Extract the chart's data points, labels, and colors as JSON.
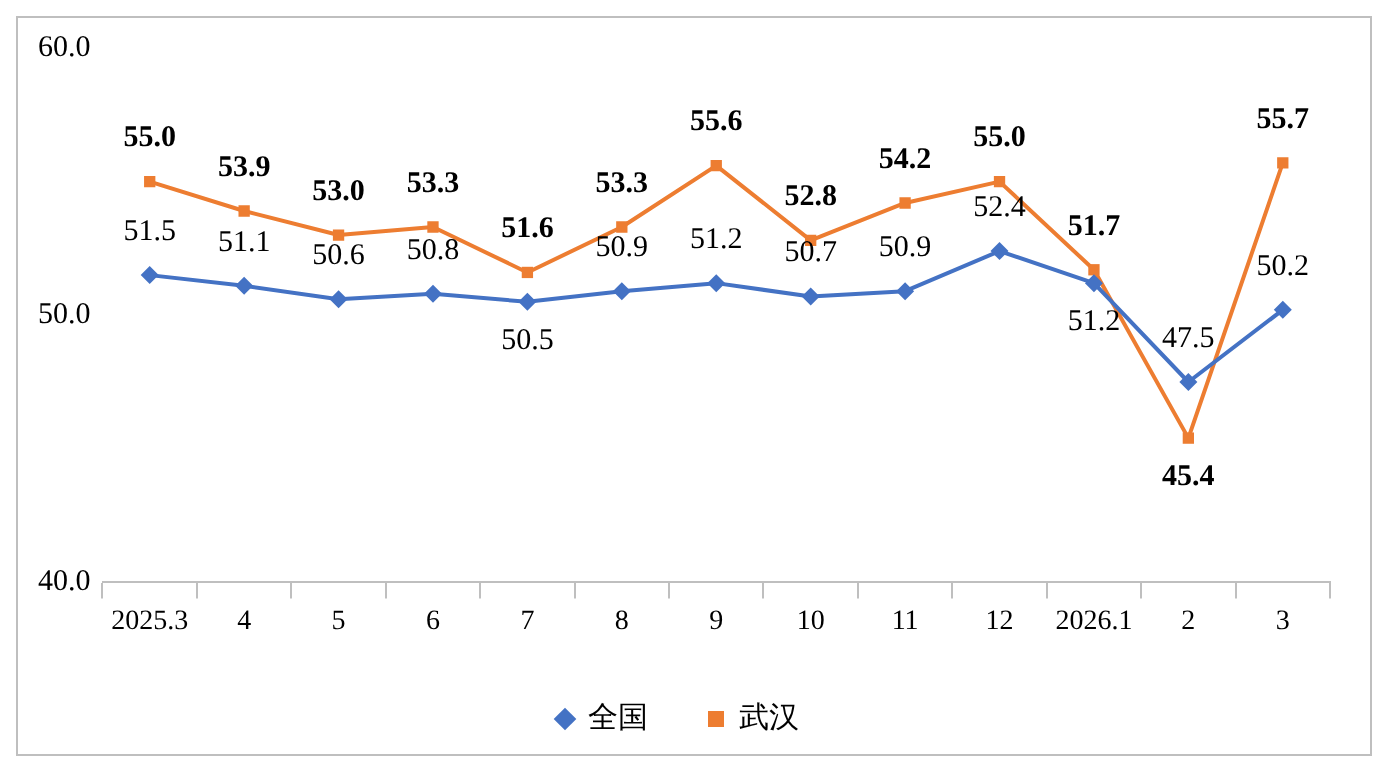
{
  "chart_data": {
    "type": "line",
    "categories": [
      "2025.3",
      "4",
      "5",
      "6",
      "7",
      "8",
      "9",
      "10",
      "11",
      "12",
      "2026.1",
      "2",
      "3"
    ],
    "series": [
      {
        "name": "全国",
        "color": "#4472c4",
        "marker": "diamond",
        "values": [
          51.5,
          51.1,
          50.6,
          50.8,
          50.5,
          50.9,
          51.2,
          50.7,
          50.9,
          52.4,
          51.2,
          47.5,
          50.2
        ],
        "value_labels": [
          "51.5",
          "51.1",
          "50.6",
          "50.8",
          "50.5",
          "50.9",
          "51.2",
          "50.7",
          "50.9",
          "52.4",
          "51.2",
          "47.5",
          "50.2"
        ]
      },
      {
        "name": "武汉",
        "color": "#ed7d31",
        "marker": "square",
        "values": [
          55.0,
          53.9,
          53.0,
          53.3,
          51.6,
          53.3,
          55.6,
          52.8,
          54.2,
          55.0,
          51.7,
          45.4,
          55.7
        ],
        "value_labels": [
          "55.0",
          "53.9",
          "53.0",
          "53.3",
          "51.6",
          "53.3",
          "55.6",
          "52.8",
          "54.2",
          "55.0",
          "51.7",
          "45.4",
          "55.7"
        ]
      }
    ],
    "ylim": [
      40,
      60
    ],
    "yticks": [
      {
        "value": 40,
        "label": "40.0"
      },
      {
        "value": 50,
        "label": "50.0"
      },
      {
        "value": 60,
        "label": "60.0"
      }
    ],
    "grid": false,
    "legend": "bottom",
    "line_style": "solid"
  }
}
